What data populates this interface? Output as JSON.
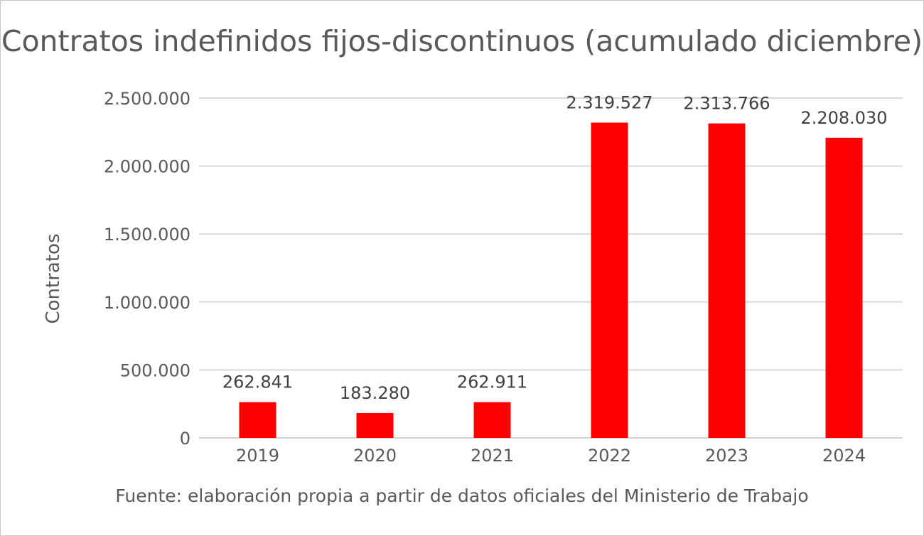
{
  "chart_data": {
    "type": "bar",
    "title": "Contratos indefinidos fijos-discontinuos (acumulado diciembre)",
    "xlabel": "",
    "ylabel": "Contratos",
    "categories": [
      "2019",
      "2020",
      "2021",
      "2022",
      "2023",
      "2024"
    ],
    "values": [
      262841,
      183280,
      262911,
      2319527,
      2313766,
      2208030
    ],
    "data_labels": [
      "262.841",
      "183.280",
      "262.911",
      "2.319.527",
      "2.313.766",
      "2.208.030"
    ],
    "ylim": [
      0,
      2500000
    ],
    "yticks": [
      0,
      500000,
      1000000,
      1500000,
      2000000,
      2500000
    ],
    "ytick_labels": [
      "0",
      "500.000",
      "1.000.000",
      "1.500.000",
      "2.000.000",
      "2.500.000"
    ],
    "grid": true,
    "legend": "none",
    "bar_color": "#ff0000",
    "source_note": "Fuente: elaboración propia a partir de datos oficiales del Ministerio de Trabajo"
  }
}
